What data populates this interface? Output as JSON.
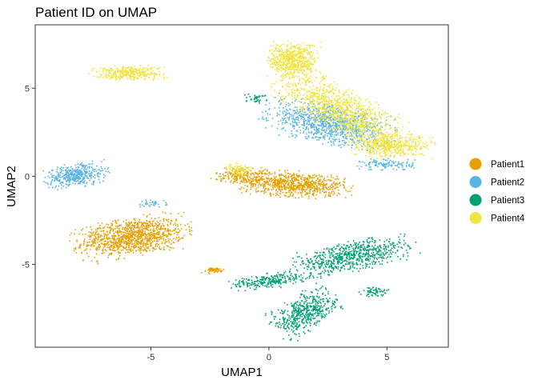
{
  "chart_data": {
    "type": "scatter",
    "title": "Patient ID on UMAP",
    "xlabel": "UMAP1",
    "ylabel": "UMAP2",
    "xlim": [
      -9.9,
      7.6
    ],
    "ylim": [
      -9.7,
      8.6
    ],
    "xticks": [
      -5,
      0,
      5
    ],
    "yticks": [
      -5,
      0,
      5
    ],
    "xtick_labels": [
      "-5",
      "0",
      "5"
    ],
    "ytick_labels": [
      "-5",
      "0",
      "5"
    ],
    "grid": false,
    "legend_position": "right",
    "series": [
      {
        "name": "Patient1",
        "color": "#E69F00",
        "clusters": [
          {
            "cx": -5.8,
            "cy": -3.4,
            "rx": 2.0,
            "ry": 0.9,
            "angle": 10,
            "density": 1100
          },
          {
            "cx": 1.0,
            "cy": -0.4,
            "rx": 2.0,
            "ry": 0.6,
            "angle": -5,
            "density": 800
          },
          {
            "cx": -1.2,
            "cy": 0.1,
            "rx": 1.0,
            "ry": 0.4,
            "angle": 0,
            "density": 160
          },
          {
            "cx": -2.4,
            "cy": -5.3,
            "rx": 0.5,
            "ry": 0.15,
            "angle": 0,
            "density": 60
          }
        ]
      },
      {
        "name": "Patient2",
        "color": "#56B4E9",
        "clusters": [
          {
            "cx": -8.2,
            "cy": 0.1,
            "rx": 1.1,
            "ry": 0.55,
            "angle": 10,
            "density": 420
          },
          {
            "cx": 2.5,
            "cy": 3.0,
            "rx": 2.3,
            "ry": 0.9,
            "angle": -15,
            "density": 1000
          },
          {
            "cx": 5.0,
            "cy": 0.7,
            "rx": 1.0,
            "ry": 0.3,
            "angle": 0,
            "density": 120
          },
          {
            "cx": -5.0,
            "cy": -1.5,
            "rx": 0.6,
            "ry": 0.2,
            "angle": 0,
            "density": 40
          }
        ]
      },
      {
        "name": "Patient3",
        "color": "#009E73",
        "clusters": [
          {
            "cx": 3.5,
            "cy": -4.5,
            "rx": 2.2,
            "ry": 0.7,
            "angle": 15,
            "density": 700
          },
          {
            "cx": 1.5,
            "cy": -7.7,
            "rx": 1.3,
            "ry": 0.8,
            "angle": 40,
            "density": 500
          },
          {
            "cx": 0.0,
            "cy": -5.9,
            "rx": 1.4,
            "ry": 0.35,
            "angle": 10,
            "density": 260
          },
          {
            "cx": 4.4,
            "cy": -6.5,
            "rx": 0.5,
            "ry": 0.25,
            "angle": 0,
            "density": 60
          },
          {
            "cx": -0.6,
            "cy": 4.5,
            "rx": 0.4,
            "ry": 0.25,
            "angle": 0,
            "density": 40
          }
        ]
      },
      {
        "name": "Patient4",
        "color": "#F0E442",
        "clusters": [
          {
            "cx": -6.0,
            "cy": 5.9,
            "rx": 1.3,
            "ry": 0.35,
            "angle": 0,
            "density": 350
          },
          {
            "cx": 1.0,
            "cy": 6.6,
            "rx": 0.9,
            "ry": 0.9,
            "angle": 0,
            "density": 600
          },
          {
            "cx": 3.0,
            "cy": 3.8,
            "rx": 2.5,
            "ry": 1.0,
            "angle": -35,
            "density": 1100
          },
          {
            "cx": 5.2,
            "cy": 1.8,
            "rx": 1.5,
            "ry": 0.6,
            "angle": 0,
            "density": 500
          },
          {
            "cx": -1.3,
            "cy": 0.4,
            "rx": 0.5,
            "ry": 0.4,
            "angle": 0,
            "density": 80
          }
        ]
      }
    ]
  }
}
